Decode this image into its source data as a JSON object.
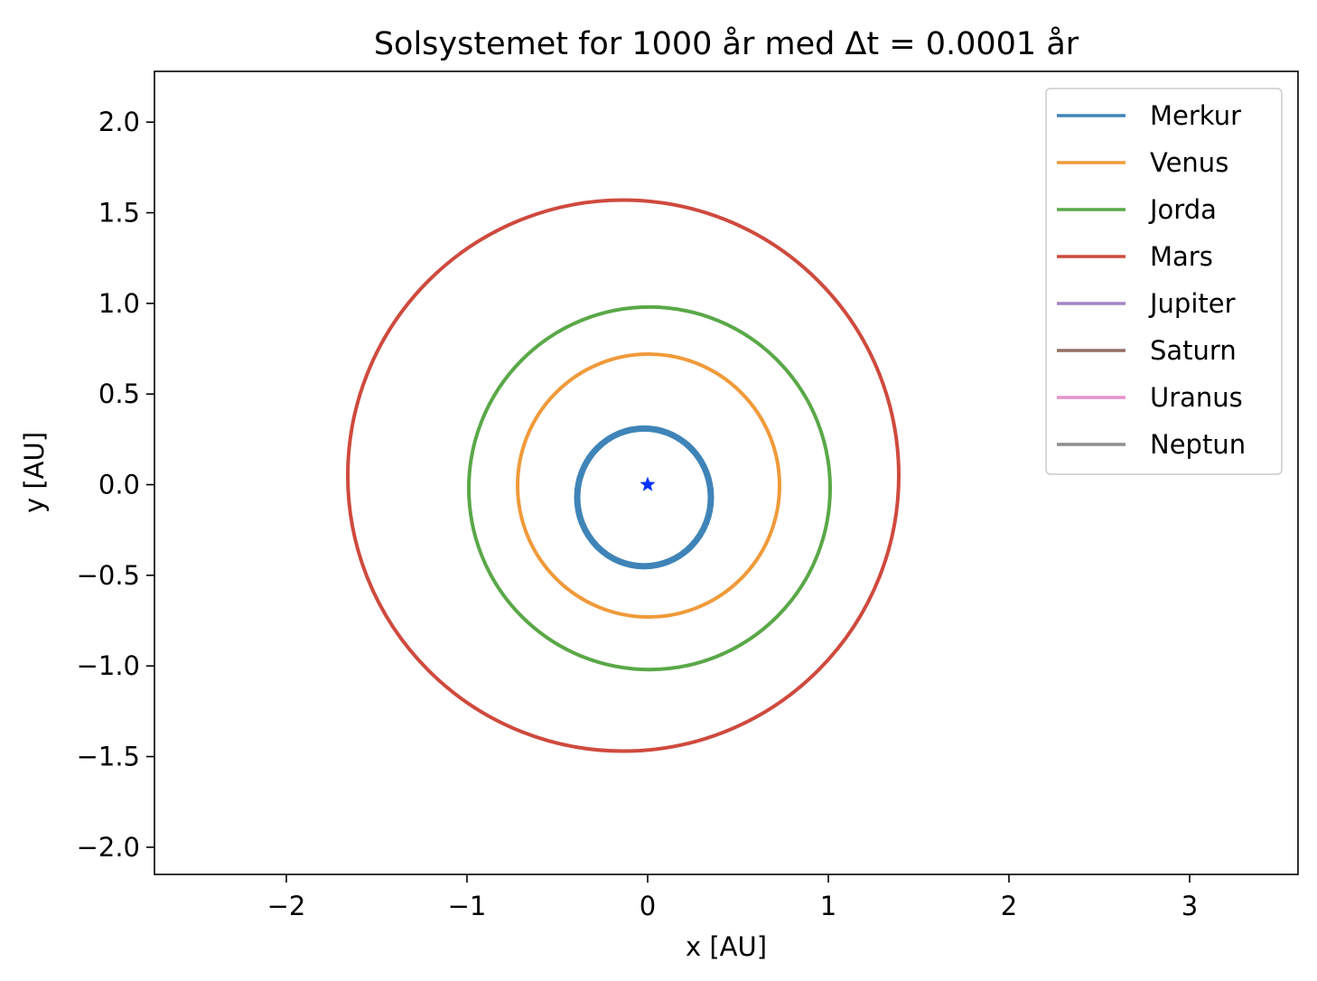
{
  "chart_data": {
    "type": "line",
    "title": "Solsystemet for 1000 år med Δt = 0.0001 år",
    "xlabel": "x [AU]",
    "ylabel": "y [AU]",
    "xlim": [
      -2.73,
      3.6
    ],
    "ylim": [
      -2.15,
      2.28
    ],
    "xticks": [
      -2,
      -1,
      0,
      1,
      2,
      3
    ],
    "xtick_labels": [
      "−2",
      "−1",
      "0",
      "1",
      "2",
      "3"
    ],
    "yticks": [
      2.0,
      1.5,
      1.0,
      0.5,
      0.0,
      -0.5,
      -1.0,
      -1.5,
      -2.0
    ],
    "ytick_labels": [
      "2.0",
      "1.5",
      "1.0",
      "0.5",
      "0.0",
      "−0.5",
      "−1.0",
      "−1.5",
      "−2.0"
    ],
    "grid": false,
    "legend_position": "top-right",
    "sun": {
      "x": 0.0,
      "y": 0.0,
      "marker": "star",
      "color": "#0033ff"
    },
    "series": [
      {
        "name": "Merkur",
        "color": "#3f84b8",
        "orbit": {
          "x_min": -0.39,
          "x_max": 0.35,
          "y_min": -0.45,
          "y_max": 0.31
        }
      },
      {
        "name": "Venus",
        "color": "#f09a3a",
        "orbit": {
          "x_min": -0.72,
          "x_max": 0.73,
          "y_min": -0.73,
          "y_max": 0.72
        }
      },
      {
        "name": "Jorda",
        "color": "#5aa848",
        "orbit": {
          "x_min": -0.99,
          "x_max": 1.01,
          "y_min": -1.02,
          "y_max": 0.98
        }
      },
      {
        "name": "Mars",
        "color": "#cf4a3e",
        "orbit": {
          "x_min": -1.66,
          "x_max": 1.39,
          "y_min": -1.47,
          "y_max": 1.57
        }
      },
      {
        "name": "Jupiter",
        "color": "#a585c4",
        "orbit": null
      },
      {
        "name": "Saturn",
        "color": "#946f64",
        "orbit": null
      },
      {
        "name": "Uranus",
        "color": "#e393ca",
        "orbit": null
      },
      {
        "name": "Neptun",
        "color": "#8e8e8e",
        "orbit": null
      }
    ]
  }
}
